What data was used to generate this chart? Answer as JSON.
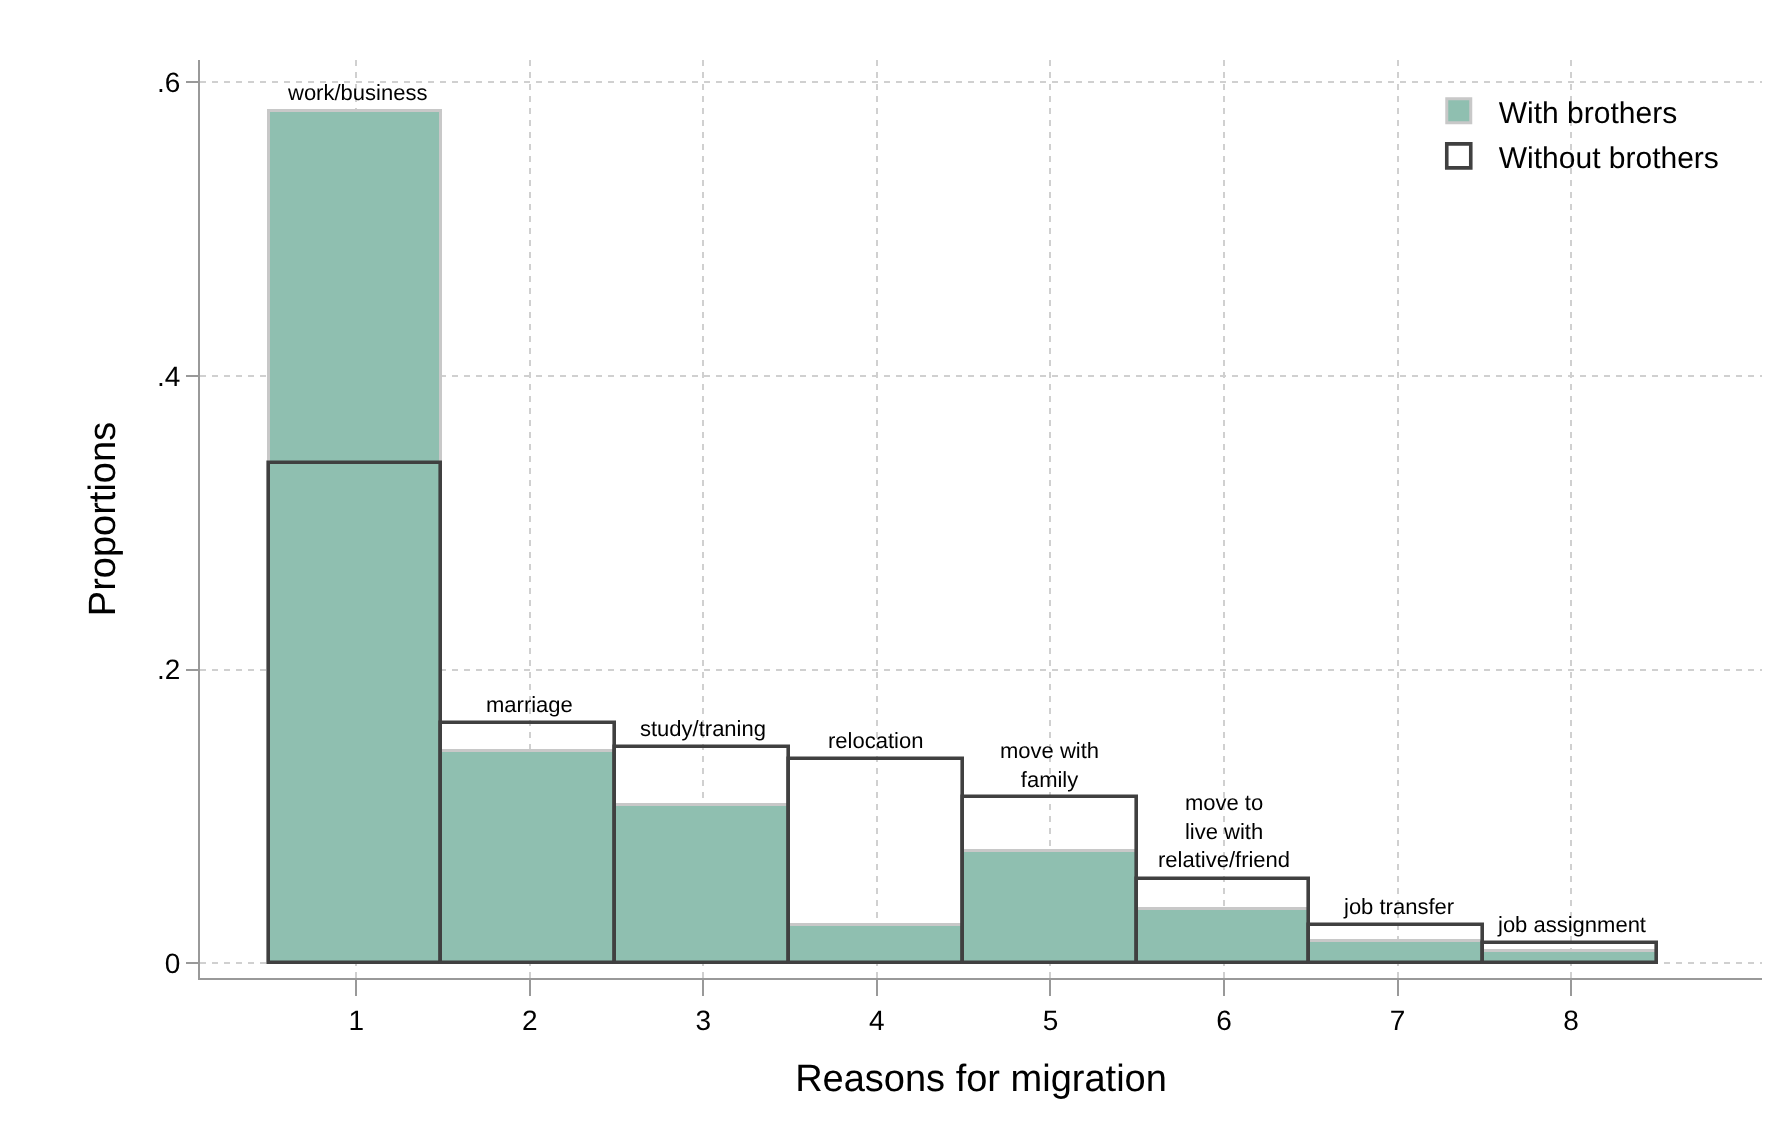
{
  "chart_data": {
    "type": "bar",
    "xlabel": "Reasons for migration",
    "ylabel": "Proportions",
    "x": [
      1,
      2,
      3,
      4,
      5,
      6,
      7,
      8
    ],
    "series": [
      {
        "name": "With brothers",
        "color": "#8fbfb0",
        "values": [
          0.58,
          0.144,
          0.107,
          0.026,
          0.076,
          0.036,
          0.015,
          0.008
        ]
      },
      {
        "name": "Without brothers",
        "color": "#404040",
        "values": [
          0.34,
          0.163,
          0.147,
          0.138,
          0.113,
          0.057,
          0.026,
          0.013
        ]
      }
    ],
    "annotations": [
      {
        "text": "work/business",
        "x": 1,
        "y": 0.58
      },
      {
        "text": "marriage",
        "x": 2,
        "y": 0.163
      },
      {
        "text": "study/traning",
        "x": 3,
        "y": 0.147
      },
      {
        "text": "relocation",
        "x": 4,
        "y": 0.138
      },
      {
        "text": "move with\nfamily",
        "x": 5,
        "y": 0.113
      },
      {
        "text": "move to\nlive with\nrelative/friend",
        "x": 6,
        "y": 0.057
      },
      {
        "text": "job transfer",
        "x": 7,
        "y": 0.026
      },
      {
        "text": "job assignment",
        "x": 8,
        "y": 0.013
      }
    ],
    "xlim": [
      0.1,
      9.1
    ],
    "xticks": [
      1,
      2,
      3,
      4,
      5,
      6,
      7,
      8
    ],
    "ylim": [
      -0.01,
      0.615
    ],
    "yticks": [
      {
        "value": 0,
        "label": "0"
      },
      {
        "value": 0.2,
        "label": ".2"
      },
      {
        "value": 0.4,
        "label": ".4"
      },
      {
        "value": 0.6,
        "label": ".6"
      }
    ],
    "grid": true,
    "legend": "top right"
  }
}
